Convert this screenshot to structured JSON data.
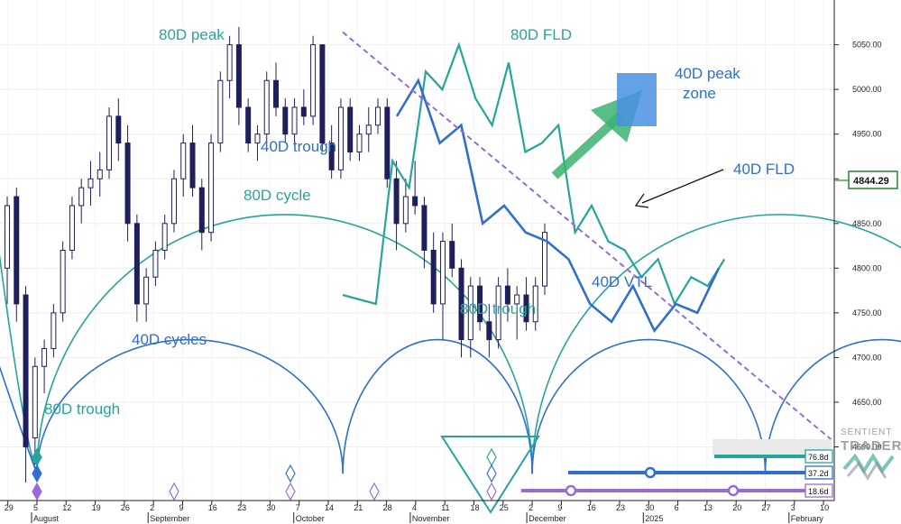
{
  "chart_data": {
    "type": "candlestick",
    "y_axis": {
      "range": [
        4550,
        5090
      ],
      "ticks": [
        4600,
        4650,
        4700,
        4750,
        4800,
        4850,
        4900,
        4950,
        5000,
        5050
      ],
      "tick_labels": [
        "4600.00",
        "4650.00",
        "4700.00",
        "4750.00",
        "4800.00",
        "4850.00",
        "4900.00",
        "4950.00",
        "5000.00",
        "5050.00"
      ],
      "current_price": 4844.29,
      "current_price_label": "4844.29"
    },
    "x_axis": {
      "day_ticks": [
        "29",
        "5",
        "12",
        "19",
        "26",
        "2",
        "9",
        "16",
        "23",
        "30",
        "7",
        "14",
        "21",
        "28",
        "4",
        "11",
        "18",
        "25",
        "2",
        "9",
        "16",
        "23",
        "30",
        "6",
        "13",
        "20",
        "27",
        "3",
        "10"
      ],
      "months": [
        {
          "label": "August",
          "tick": 1
        },
        {
          "label": "September",
          "tick": 5
        },
        {
          "label": "October",
          "tick": 10
        },
        {
          "label": "November",
          "tick": 14
        },
        {
          "label": "December",
          "tick": 18
        },
        {
          "label": "2025",
          "tick": 22
        },
        {
          "label": "February",
          "tick": 27
        }
      ]
    },
    "candles": [
      [
        4800,
        4880,
        4760,
        4870
      ],
      [
        4880,
        4890,
        4740,
        4760
      ],
      [
        4770,
        4780,
        4560,
        4600
      ],
      [
        4610,
        4700,
        4580,
        4690
      ],
      [
        4690,
        4720,
        4660,
        4710
      ],
      [
        4710,
        4760,
        4700,
        4750
      ],
      [
        4750,
        4830,
        4740,
        4820
      ],
      [
        4820,
        4880,
        4810,
        4870
      ],
      [
        4870,
        4900,
        4850,
        4890
      ],
      [
        4890,
        4920,
        4870,
        4900
      ],
      [
        4900,
        4930,
        4880,
        4910
      ],
      [
        4910,
        4980,
        4900,
        4970
      ],
      [
        4970,
        4990,
        4920,
        4940
      ],
      [
        4940,
        4960,
        4830,
        4850
      ],
      [
        4850,
        4860,
        4740,
        4760
      ],
      [
        4760,
        4800,
        4740,
        4790
      ],
      [
        4790,
        4830,
        4780,
        4820
      ],
      [
        4820,
        4860,
        4810,
        4850
      ],
      [
        4850,
        4910,
        4840,
        4900
      ],
      [
        4900,
        4950,
        4880,
        4940
      ],
      [
        4940,
        4960,
        4880,
        4890
      ],
      [
        4890,
        4900,
        4820,
        4840
      ],
      [
        4840,
        4950,
        4830,
        4940
      ],
      [
        4940,
        5020,
        4930,
        5010
      ],
      [
        5010,
        5060,
        4990,
        5050
      ],
      [
        5050,
        5070,
        4960,
        4980
      ],
      [
        4980,
        4990,
        4930,
        4940
      ],
      [
        4940,
        4960,
        4920,
        4950
      ],
      [
        4950,
        5020,
        4940,
        5010
      ],
      [
        5010,
        5030,
        4970,
        4980
      ],
      [
        4980,
        4990,
        4940,
        4950
      ],
      [
        4950,
        4990,
        4940,
        4980
      ],
      [
        4980,
        5000,
        4960,
        4970
      ],
      [
        4970,
        5060,
        4960,
        5050
      ],
      [
        5050,
        5050,
        4930,
        4940
      ],
      [
        4940,
        4960,
        4900,
        4910
      ],
      [
        4910,
        4990,
        4900,
        4980
      ],
      [
        4980,
        4990,
        4920,
        4930
      ],
      [
        4930,
        4960,
        4920,
        4950
      ],
      [
        4950,
        4980,
        4930,
        4960
      ],
      [
        4960,
        4990,
        4950,
        4980
      ],
      [
        4980,
        4990,
        4890,
        4900
      ],
      [
        4900,
        4920,
        4820,
        4850
      ],
      [
        4850,
        4900,
        4840,
        4880
      ],
      [
        4880,
        4920,
        4860,
        4870
      ],
      [
        4870,
        4880,
        4800,
        4820
      ],
      [
        4820,
        4840,
        4750,
        4760
      ],
      [
        4760,
        4840,
        4720,
        4830
      ],
      [
        4830,
        4850,
        4790,
        4800
      ],
      [
        4800,
        4810,
        4700,
        4720
      ],
      [
        4720,
        4790,
        4700,
        4780
      ],
      [
        4780,
        4790,
        4730,
        4740
      ],
      [
        4740,
        4760,
        4700,
        4720
      ],
      [
        4720,
        4790,
        4710,
        4780
      ],
      [
        4780,
        4800,
        4740,
        4760
      ],
      [
        4760,
        4780,
        4720,
        4770
      ],
      [
        4770,
        4790,
        4730,
        4740
      ],
      [
        4740,
        4790,
        4730,
        4780
      ],
      [
        4780,
        4850,
        4770,
        4840
      ]
    ],
    "fld_80d": [
      [
        14,
        4770
      ],
      [
        16,
        4760
      ],
      [
        17,
        4920
      ],
      [
        18,
        4890
      ],
      [
        19,
        5020
      ],
      [
        20,
        5000
      ],
      [
        21,
        5050
      ],
      [
        22,
        4990
      ],
      [
        23,
        4960
      ],
      [
        24,
        5030
      ],
      [
        25,
        4930
      ],
      [
        26,
        4940
      ],
      [
        27,
        4960
      ],
      [
        28,
        4840
      ],
      [
        29,
        4870
      ],
      [
        30,
        4830
      ],
      [
        31,
        4820
      ],
      [
        32,
        4790
      ],
      [
        33,
        4810
      ],
      [
        34,
        4760
      ],
      [
        35,
        4790
      ],
      [
        36,
        4780
      ],
      [
        37,
        4810
      ]
    ],
    "fld_40d": [
      [
        20,
        4970
      ],
      [
        21,
        5010
      ],
      [
        22,
        4940
      ],
      [
        23,
        4960
      ],
      [
        24,
        4850
      ],
      [
        25,
        4870
      ],
      [
        26,
        4840
      ],
      [
        27,
        4830
      ],
      [
        28,
        4810
      ],
      [
        29,
        4760
      ],
      [
        30,
        4740
      ],
      [
        31,
        4780
      ],
      [
        32,
        4730
      ],
      [
        33,
        4760
      ],
      [
        34,
        4750
      ],
      [
        35,
        4800
      ]
    ],
    "vtl_40d": [
      [
        14,
        5050
      ],
      [
        35,
        4620
      ]
    ],
    "cycle_80d_troughs": [
      1,
      18,
      35
    ],
    "cycle_40d_troughs": [
      1,
      11.5,
      18,
      26,
      34
    ],
    "annotations": [
      "80D peak",
      "80D FLD",
      "40D peak\nzone",
      "40D trough",
      "40D FLD",
      "80D cycle",
      "40D VTL",
      "80D trough",
      "40D cycles",
      "80D trough"
    ],
    "cycle_lengths": [
      "76.8d",
      "37.2d",
      "18.6d"
    ],
    "colors": {
      "teal": "#26a69a",
      "blue": "#2e6fd1",
      "purple": "#9a6ad6",
      "green": "#3cb371",
      "candle_dark": "#1f1f5c"
    }
  },
  "brand": {
    "line1": "SENTIENT",
    "line2": "TRADER"
  }
}
